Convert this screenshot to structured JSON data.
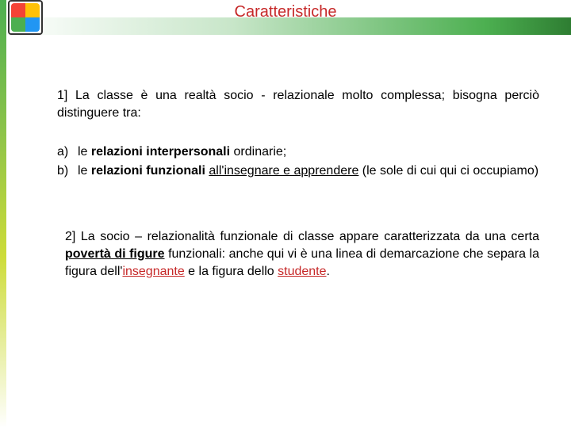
{
  "colors": {
    "title_color": "#c62828",
    "accent_color": "#c62828",
    "text_color": "#000000",
    "stripe_gradient": [
      "#4caf50",
      "#8bc34a",
      "#cddc39",
      "#ffffff"
    ],
    "header_gradient": [
      "#ffffff",
      "#c8e6c9",
      "#4caf50",
      "#2e7d32"
    ],
    "background": "#ffffff"
  },
  "typography": {
    "title_fontsize": 20,
    "body_fontsize": 16,
    "font_family": "Arial"
  },
  "title": "Caratteristiche",
  "para1": {
    "lead": "1] La classe è una realtà socio - relazionale molto complessa; bisogna perciò distinguere tra:"
  },
  "list": {
    "items": [
      {
        "marker": "a)",
        "pre": "le ",
        "bold": "relazioni interpersonali",
        "post": " ordinarie;"
      },
      {
        "marker": "b)",
        "pre": "le ",
        "bold": "relazioni funzionali",
        "mid": " ",
        "underlined": "all'insegnare e apprendere",
        "post": " (le sole di cui qui ci occupiamo)"
      }
    ]
  },
  "para2": {
    "t1": "2] La socio – relazionalità funzionale di classe appare caratterizzata da una certa ",
    "bold": "povertà di figure",
    "t2": " funzionali: anche qui  vi è una linea di demarcazione che separa la figura dell'",
    "red1": "insegnante",
    "t3": " e la figura dello ",
    "red2": "studente",
    "t4": "."
  }
}
